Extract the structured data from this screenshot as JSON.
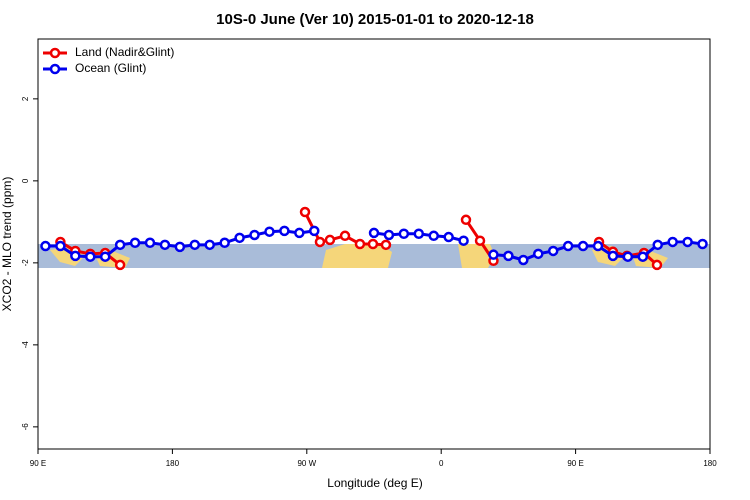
{
  "chart_data": {
    "type": "line",
    "title": "10S-0 June (Ver 10)   2015-01-01 to 2020-12-18",
    "x_label": "Longitude (deg E)",
    "y_label": "XCO2 - MLO trend (ppm)",
    "xlim": [
      90,
      540
    ],
    "xticks": [
      {
        "value": 90,
        "label": "90 E"
      },
      180,
      {
        "value": 270,
        "label": "90 W"
      },
      {
        "value": 360,
        "label": "0"
      },
      {
        "value": 450,
        "label": "90 E"
      },
      {
        "value": 540,
        "label": "180"
      }
    ],
    "ylim": [
      -6.54,
      3.46
    ],
    "yticks": [
      2,
      0,
      -2,
      -4,
      -6
    ],
    "legend": "top-left",
    "series": [
      {
        "name": "Land (Nadir&Glint)",
        "color": "#ee0000",
        "x": [
          105,
          115,
          125,
          135,
          145,
          null,
          268.8,
          278.8,
          285.5,
          295.6,
          305.6,
          314.3,
          323,
          null,
          376.6,
          386,
          395,
          null,
          465.7,
          475,
          484.4,
          495.8,
          504.5
        ],
        "values": [
          -1.49,
          -1.71,
          -1.78,
          -1.76,
          -2.05,
          null,
          -0.76,
          -1.49,
          -1.44,
          -1.34,
          -1.54,
          -1.54,
          -1.56,
          null,
          -0.95,
          -1.46,
          -1.95,
          null,
          -1.49,
          -1.73,
          -1.83,
          -1.76,
          -2.05
        ]
      },
      {
        "name": "Ocean (Glint)",
        "color": "#0000ee",
        "x": [
          95,
          105,
          115,
          125,
          135,
          145,
          155,
          165,
          175,
          185,
          195,
          205,
          215,
          225,
          235,
          245,
          255,
          265,
          275,
          285,
          295,
          305,
          315,
          325,
          335,
          345,
          355,
          365,
          375,
          385,
          395,
          405,
          415,
          425,
          435,
          445,
          455,
          465,
          475,
          485,
          495,
          505,
          515,
          525,
          535
        ],
        "values": [
          -1.59,
          -1.59,
          -1.83,
          -1.85,
          -1.85,
          -1.56,
          -1.51,
          -1.51,
          -1.56,
          -1.61,
          -1.56,
          -1.56,
          -1.51,
          -1.39,
          -1.32,
          -1.24,
          -1.22,
          -1.27,
          -1.22,
          null,
          null,
          null,
          -1.27,
          -1.32,
          -1.29,
          -1.29,
          -1.34,
          -1.37,
          -1.46,
          null,
          -1.8,
          -1.83,
          -1.93,
          -1.78,
          -1.71,
          -1.59,
          -1.59,
          -1.59,
          -1.83,
          -1.85,
          -1.85,
          -1.56,
          -1.49,
          -1.49,
          -1.54
        ]
      }
    ]
  }
}
